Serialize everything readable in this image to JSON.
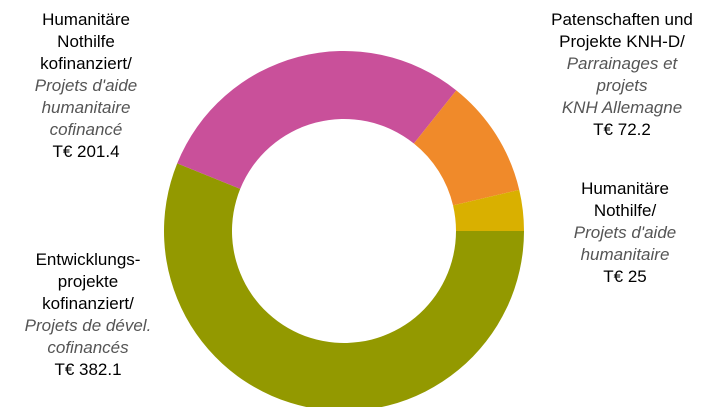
{
  "chart_data": {
    "type": "pie",
    "subtype": "donut",
    "unit_prefix": "T€",
    "slices": [
      {
        "id": "develop",
        "label_de": [
          "Entwicklungs-",
          "projekte",
          "kofinanziert/"
        ],
        "label_fr": [
          "Projets de dével.",
          "cofinancés"
        ],
        "value": 382.1,
        "value_text": "382.1",
        "color": "#939900"
      },
      {
        "id": "humcof",
        "label_de": [
          "Humanitäre",
          "Nothilfe",
          "kofinanziert/"
        ],
        "label_fr": [
          "Projets d'aide",
          "humanitaire",
          "cofinancé"
        ],
        "value": 201.4,
        "value_text": "201.4",
        "color": "#c9509a"
      },
      {
        "id": "paten",
        "label_de": [
          "Patenschaften und",
          "Projekte KNH-D/"
        ],
        "label_fr": [
          "Parrainages et",
          "projets",
          "KNH Allemagne"
        ],
        "value": 72.2,
        "value_text": "72.2",
        "color": "#f08a2a"
      },
      {
        "id": "hum",
        "label_de": [
          "Humanitäre",
          "Nothilfe/"
        ],
        "label_fr": [
          "Projets d'aide",
          "humanitaire"
        ],
        "value": 25,
        "value_text": "25",
        "color": "#d9b000"
      }
    ]
  }
}
